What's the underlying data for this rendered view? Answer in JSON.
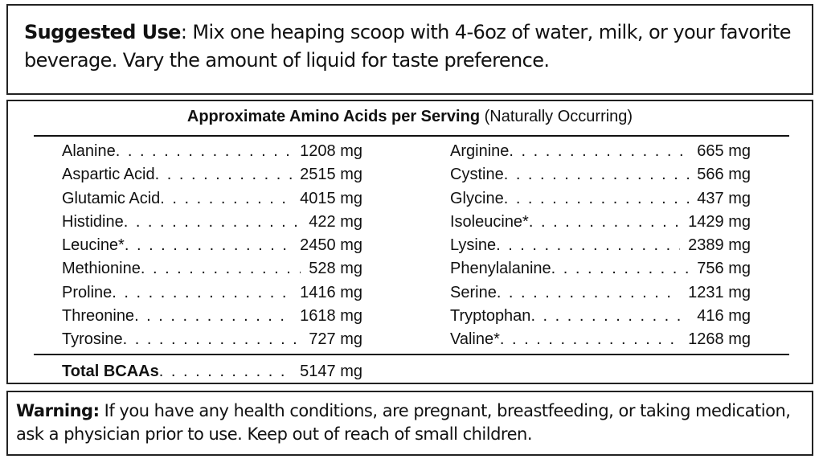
{
  "suggested_use": {
    "label": "Suggested Use",
    "text": ": Mix one heaping scoop with 4-6oz of water, milk, or your favorite beverage. Vary the amount of liquid for taste preference."
  },
  "amino_table": {
    "title": "Approximate Amino Acids per Serving",
    "subtitle": "(Naturally Occurring)",
    "left": [
      [
        "Alanine",
        "1208 mg"
      ],
      [
        "Aspartic Acid",
        "2515 mg"
      ],
      [
        "Glutamic Acid",
        "4015 mg"
      ],
      [
        "Histidine",
        "422 mg"
      ],
      [
        "Leucine*",
        "2450 mg"
      ],
      [
        "Methionine",
        "528 mg"
      ],
      [
        "Proline",
        "1416 mg"
      ],
      [
        "Threonine",
        "1618 mg"
      ],
      [
        "Tyrosine",
        "727 mg"
      ]
    ],
    "right": [
      [
        "Arginine",
        "665 mg"
      ],
      [
        "Cystine",
        "566 mg"
      ],
      [
        "Glycine",
        "437 mg"
      ],
      [
        "Isoleucine*",
        "1429 mg"
      ],
      [
        "Lysine",
        "2389 mg"
      ],
      [
        "Phenylalanine",
        "756 mg"
      ],
      [
        "Serine",
        "1231 mg"
      ],
      [
        "Tryptophan",
        "416 mg"
      ],
      [
        "Valine*",
        "1268 mg"
      ]
    ],
    "total": [
      "Total BCAAs",
      "5147 mg"
    ]
  },
  "warning": {
    "label": "Warning:",
    "text": " If you have any health conditions, are pregnant, breastfeeding, or taking medication, ask a physician prior to use. Keep out of reach of small children."
  }
}
